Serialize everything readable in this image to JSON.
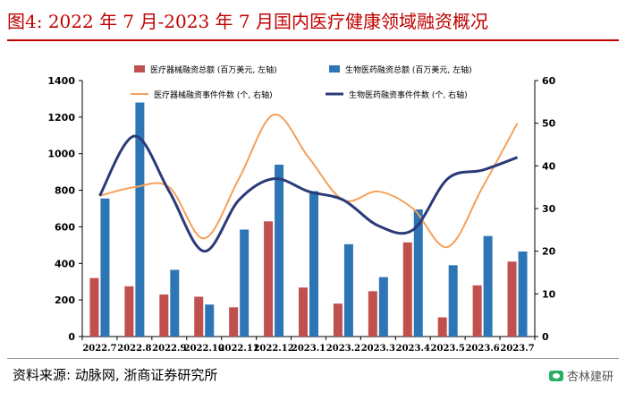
{
  "header": {
    "title": "图4:   2022 年 7 月-2023 年 7 月国内医疗健康领域融资概况"
  },
  "footer": {
    "source": "资料来源:  动脉网,  浙商证券研究所",
    "watermark": "杏林建研"
  },
  "colors": {
    "title": "#c00000",
    "bar_device": "#c0504d",
    "bar_bio": "#2e75b6",
    "line_device": "#f5a05a",
    "line_bio": "#2b3a78"
  },
  "chart_data": {
    "type": "bar",
    "categories": [
      "2022.7",
      "2022.8",
      "2022.9",
      "2022.10",
      "2022.11",
      "2022.12",
      "2023.1",
      "2023.2",
      "2023.3",
      "2023.4",
      "2023.5",
      "2023.6",
      "2023.7"
    ],
    "ylim_left": [
      0,
      1400
    ],
    "yticks_left": [
      0,
      200,
      400,
      600,
      800,
      1000,
      1200,
      1400
    ],
    "ylim_right": [
      0,
      60
    ],
    "yticks_right": [
      0,
      10,
      20,
      30,
      40,
      50,
      60
    ],
    "series": [
      {
        "name": "医疗器械融资总额 (百万美元, 左轴)",
        "kind": "bar",
        "axis": "left",
        "values": [
          320,
          275,
          230,
          218,
          160,
          630,
          268,
          180,
          248,
          515,
          105,
          280,
          410
        ]
      },
      {
        "name": "生物医药融资总额 (百万美元, 左轴)",
        "kind": "bar",
        "axis": "left",
        "values": [
          755,
          1280,
          365,
          175,
          585,
          940,
          795,
          505,
          325,
          695,
          390,
          550,
          465
        ]
      },
      {
        "name": "医疗器械融资事件件数 (个, 右轴)",
        "kind": "line",
        "axis": "right",
        "values": [
          33,
          35,
          35,
          23,
          37,
          52,
          42,
          32,
          34,
          30,
          21,
          35,
          50
        ]
      },
      {
        "name": "生物医药融资事件件数 (个, 右轴)",
        "kind": "line",
        "axis": "right",
        "values": [
          33,
          47,
          34,
          20,
          32,
          37,
          34,
          32,
          26,
          25,
          37,
          39,
          42
        ]
      }
    ]
  }
}
